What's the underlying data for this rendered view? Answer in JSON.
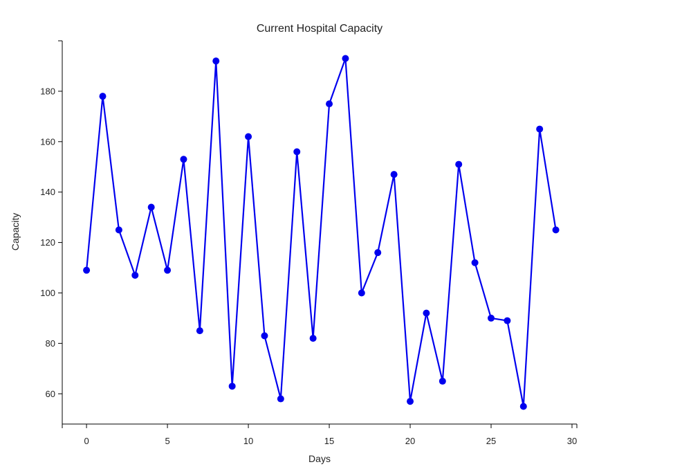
{
  "chart_data": {
    "type": "line",
    "title": "Current Hospital Capacity",
    "xlabel": "Days",
    "ylabel": "Capacity",
    "xlim": [
      -1.5,
      30.3
    ],
    "ylim": [
      48,
      200
    ],
    "xticks": [
      0,
      5,
      10,
      15,
      20,
      25,
      30
    ],
    "yticks": [
      60,
      80,
      100,
      120,
      140,
      160,
      180
    ],
    "grid": false,
    "color": "#0000ee",
    "series": [
      {
        "x": [
          0,
          1,
          2,
          3,
          4,
          5,
          6,
          7,
          8,
          9,
          10,
          11,
          12,
          13,
          14,
          15,
          16,
          17,
          18,
          19,
          20,
          21,
          22,
          23,
          24,
          25,
          26,
          27,
          28,
          29
        ],
        "values": [
          109,
          178,
          125,
          107,
          134,
          109,
          153,
          85,
          192,
          63,
          162,
          83,
          58,
          156,
          82,
          175,
          193,
          100,
          116,
          147,
          57,
          92,
          65,
          151,
          112,
          90,
          89,
          55,
          165,
          125
        ]
      }
    ]
  }
}
